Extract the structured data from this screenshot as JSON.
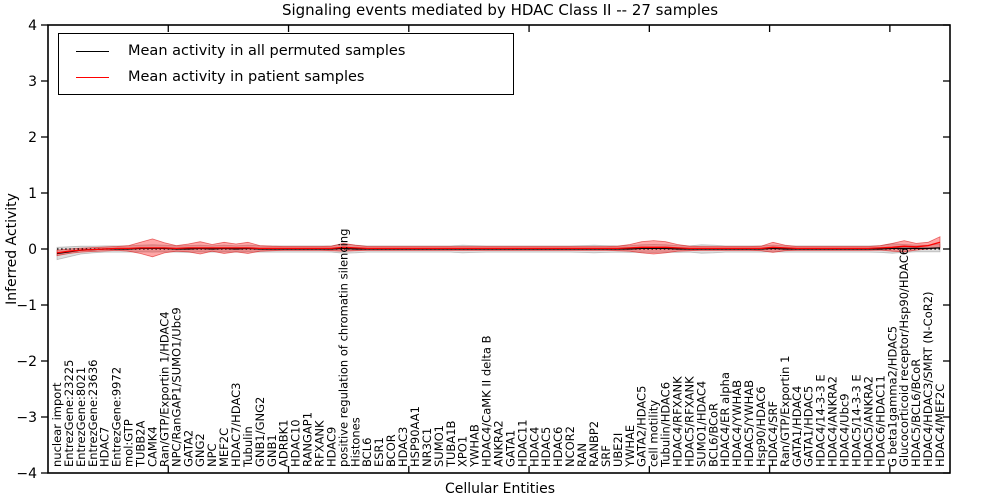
{
  "chart_data": {
    "type": "line",
    "title": "Signaling events mediated by HDAC Class II -- 27 samples",
    "xlabel": "Cellular Entities",
    "ylabel": "Inferred Activity",
    "ylim": [
      -4,
      4
    ],
    "yticks": [
      4,
      3,
      2,
      1,
      0,
      -1,
      -2,
      -3,
      -4
    ],
    "ytick_labels": [
      "4",
      "3",
      "2",
      "1",
      "0",
      "−1",
      "−2",
      "−3",
      "−4"
    ],
    "x_major_ticks": [
      10,
      20,
      30,
      40,
      50,
      60,
      70
    ],
    "grid": false,
    "legend_position": "upper left",
    "zero_line": {
      "y": 0,
      "style": "dotted",
      "color": "#000000"
    },
    "categories": [
      "nuclear import",
      "EntrezGene:23225",
      "EntrezGene:8021",
      "EntrezGene:23636",
      "HDAC7",
      "EntrezGene:9972",
      "mol:GTP",
      "TUBB2A",
      "CAMK4",
      "Ran/GTP/Exportin 1/HDAC4",
      "NPC/RanGAP1/SUMO1/Ubc9",
      "GATA2",
      "GNG2",
      "NPC",
      "MEF2C",
      "HDAC7/HDAC3",
      "Tubulin",
      "GNB1/GNG2",
      "GNB1",
      "ADRBK1",
      "HDAC10",
      "RANGAP1",
      "RFXANK",
      "HDAC9",
      "positive regulation of chromatin silencing",
      "Histones",
      "BCL6",
      "ESR1",
      "BCOR",
      "HDAC3",
      "HSP90AA1",
      "NR3C1",
      "SUMO1",
      "TUBA1B",
      "XPO1",
      "YWHAB",
      "HDAC4/CaMK II delta B",
      "ANKRA2",
      "GATA1",
      "HDAC11",
      "HDAC4",
      "HDAC5",
      "HDAC6",
      "NCOR2",
      "RAN",
      "RANBP2",
      "SRF",
      "UBE2I",
      "YWHAE",
      "GATA2/HDAC5",
      "cell motility",
      "Tubulin/HDAC6",
      "HDAC4/RFXANK",
      "HDAC5/RFXANK",
      "SUMO1/HDAC4",
      "BCL6/BCoR",
      "HDAC4/ER alpha",
      "HDAC4/YWHAB",
      "HDAC5/YWHAB",
      "Hsp90/HDAC6",
      "HDAC4/SRF",
      "Ran/GTP/Exportin 1",
      "GATA1/HDAC4",
      "GATA1/HDAC5",
      "HDAC4/14-3-3 E",
      "HDAC4/ANKRA2",
      "HDAC4/Ubc9",
      "HDAC5/14-3-3 E",
      "HDAC5/ANKRA2",
      "HDAC6/HDAC11",
      "G beta1gamma2/HDAC5",
      "Glucocorticoid receptor/Hsp90/HDAC6",
      "HDAC5/BCL6/BCoR",
      "HDAC4/HDAC3/SMRT (N-CoR2)",
      "HDAC4/MEF2C"
    ],
    "series": [
      {
        "name": "Mean activity in all permuted samples",
        "color": "#000000",
        "values": [
          -0.08,
          -0.05,
          -0.02,
          -0.01,
          0,
          0,
          0,
          0.01,
          0.01,
          0.01,
          0,
          0,
          0.01,
          0,
          0.01,
          0,
          0.01,
          0,
          0,
          0,
          0,
          0,
          0,
          0,
          0.01,
          0,
          0,
          0,
          0,
          0,
          0,
          0,
          0,
          0,
          0,
          0,
          0,
          0,
          0,
          0,
          0,
          0,
          0,
          0,
          0,
          0,
          0,
          0,
          0,
          0.01,
          0.01,
          0.01,
          0,
          0,
          0,
          0,
          0,
          0,
          0,
          0,
          0.01,
          0,
          0,
          0,
          0,
          0,
          0,
          0,
          0,
          0,
          0.01,
          0.01,
          0.01,
          0.01,
          0.02
        ]
      },
      {
        "name": "Mean activity in patient samples",
        "color": "#ff0000",
        "values": [
          -0.07,
          -0.04,
          -0.02,
          -0.01,
          0,
          0.01,
          0.01,
          0.02,
          0.02,
          0.02,
          0.01,
          0.02,
          0.02,
          0.02,
          0.02,
          0.02,
          0.02,
          0.01,
          0.01,
          0.01,
          0.01,
          0.01,
          0.01,
          0.01,
          0.03,
          0.02,
          0.01,
          0.01,
          0.01,
          0.01,
          0.01,
          0.01,
          0.01,
          0.01,
          0.01,
          0.01,
          0.01,
          0.01,
          0.01,
          0.01,
          0.01,
          0.01,
          0.01,
          0.01,
          0.01,
          0.01,
          0.01,
          0.01,
          0.02,
          0.03,
          0.03,
          0.03,
          0.02,
          0.01,
          0.01,
          0.01,
          0.01,
          0.01,
          0.01,
          0.01,
          0.03,
          0.02,
          0.01,
          0.01,
          0.01,
          0.01,
          0.01,
          0.01,
          0.01,
          0.02,
          0.03,
          0.05,
          0.04,
          0.06,
          0.12
        ]
      }
    ],
    "violins": [
      {
        "series": "Mean activity in all permuted samples",
        "fill": "rgba(0,0,0,0.13)",
        "edge": "rgba(0,0,0,0.22)",
        "half_widths": [
          0.11,
          0.09,
          0.07,
          0.06,
          0.055,
          0.055,
          0.055,
          0.06,
          0.065,
          0.06,
          0.055,
          0.06,
          0.06,
          0.055,
          0.06,
          0.055,
          0.06,
          0.055,
          0.055,
          0.055,
          0.055,
          0.055,
          0.055,
          0.055,
          0.085,
          0.07,
          0.055,
          0.055,
          0.055,
          0.055,
          0.055,
          0.055,
          0.055,
          0.055,
          0.07,
          0.06,
          0.055,
          0.055,
          0.055,
          0.055,
          0.055,
          0.055,
          0.055,
          0.055,
          0.06,
          0.07,
          0.06,
          0.055,
          0.06,
          0.065,
          0.07,
          0.065,
          0.06,
          0.055,
          0.075,
          0.07,
          0.055,
          0.055,
          0.055,
          0.055,
          0.06,
          0.055,
          0.055,
          0.055,
          0.055,
          0.055,
          0.055,
          0.055,
          0.055,
          0.06,
          0.085,
          0.07,
          0.06,
          0.06,
          0.07
        ]
      },
      {
        "series": "Mean activity in patient samples",
        "fill": "rgba(255,0,0,0.35)",
        "edge": "rgba(215,0,0,0.55)",
        "half_widths": [
          0.05,
          0.04,
          0.035,
          0.035,
          0.035,
          0.035,
          0.05,
          0.1,
          0.16,
          0.09,
          0.05,
          0.07,
          0.11,
          0.06,
          0.1,
          0.07,
          0.1,
          0.05,
          0.04,
          0.035,
          0.035,
          0.035,
          0.035,
          0.04,
          0.07,
          0.05,
          0.035,
          0.035,
          0.035,
          0.035,
          0.035,
          0.035,
          0.035,
          0.035,
          0.035,
          0.035,
          0.035,
          0.035,
          0.035,
          0.035,
          0.035,
          0.035,
          0.035,
          0.035,
          0.035,
          0.035,
          0.035,
          0.04,
          0.06,
          0.1,
          0.12,
          0.1,
          0.06,
          0.04,
          0.035,
          0.035,
          0.035,
          0.035,
          0.035,
          0.04,
          0.09,
          0.05,
          0.035,
          0.035,
          0.035,
          0.035,
          0.035,
          0.035,
          0.035,
          0.04,
          0.07,
          0.1,
          0.06,
          0.06,
          0.1
        ]
      }
    ]
  },
  "legend": {
    "items": [
      {
        "label": "Mean activity in all permuted samples"
      },
      {
        "label": "Mean activity in patient samples"
      }
    ]
  }
}
